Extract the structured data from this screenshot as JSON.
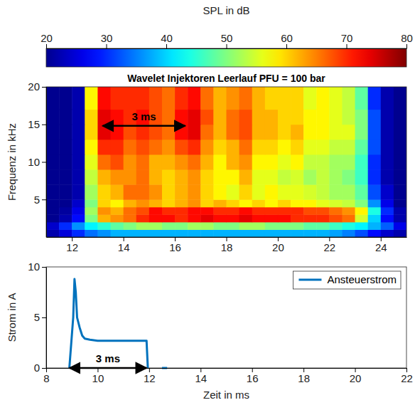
{
  "chart_data": [
    {
      "type": "heatmap",
      "title": "Wavelet Injektoren Leerlauf PFU = 100 bar",
      "y_label": "Frequenz in kHz",
      "x_edges": [
        11,
        11.5,
        12,
        12.5,
        13,
        13.5,
        14,
        14.5,
        15,
        15.5,
        16,
        16.5,
        17,
        17.5,
        18,
        18.5,
        19,
        19.5,
        20,
        20.5,
        21,
        21.5,
        22,
        22.5,
        23,
        23.5,
        24,
        24.5,
        25
      ],
      "y_edges": [
        0,
        1,
        2,
        3,
        4,
        5,
        7,
        9,
        11,
        13,
        15,
        17,
        20
      ],
      "z": [
        [
          22,
          25,
          30,
          34,
          36,
          38,
          38,
          38,
          38,
          38,
          38,
          38,
          38,
          38,
          38,
          38,
          38,
          38,
          38,
          38,
          38,
          38,
          37,
          35,
          32,
          28,
          24,
          22
        ],
        [
          24,
          30,
          36,
          42,
          45,
          48,
          50,
          52,
          52,
          50,
          50,
          52,
          52,
          50,
          50,
          52,
          52,
          50,
          50,
          50,
          48,
          48,
          46,
          44,
          42,
          38,
          33,
          26
        ],
        [
          20,
          22,
          28,
          50,
          62,
          64,
          66,
          70,
          72,
          72,
          70,
          72,
          74,
          72,
          72,
          74,
          72,
          72,
          72,
          70,
          70,
          70,
          68,
          66,
          55,
          40,
          28,
          22
        ],
        [
          20,
          21,
          26,
          52,
          64,
          62,
          66,
          68,
          72,
          70,
          70,
          72,
          72,
          70,
          70,
          72,
          70,
          70,
          70,
          70,
          68,
          68,
          66,
          64,
          58,
          44,
          30,
          22
        ],
        [
          20,
          20,
          24,
          50,
          60,
          58,
          62,
          64,
          62,
          60,
          62,
          64,
          60,
          62,
          60,
          58,
          60,
          58,
          60,
          58,
          58,
          56,
          55,
          54,
          50,
          36,
          26,
          20
        ],
        [
          20,
          20,
          22,
          52,
          60,
          62,
          66,
          66,
          64,
          60,
          62,
          64,
          60,
          58,
          56,
          60,
          56,
          58,
          56,
          56,
          55,
          54,
          52,
          52,
          48,
          32,
          24,
          20
        ],
        [
          20,
          20,
          22,
          54,
          62,
          64,
          64,
          66,
          62,
          60,
          62,
          64,
          60,
          58,
          58,
          62,
          56,
          56,
          54,
          55,
          52,
          54,
          52,
          50,
          46,
          30,
          22,
          20
        ],
        [
          20,
          20,
          22,
          56,
          66,
          68,
          64,
          66,
          62,
          62,
          64,
          66,
          62,
          58,
          62,
          64,
          58,
          58,
          56,
          58,
          54,
          54,
          52,
          52,
          46,
          30,
          22,
          20
        ],
        [
          20,
          20,
          22,
          58,
          70,
          70,
          66,
          68,
          66,
          64,
          68,
          70,
          64,
          60,
          62,
          66,
          60,
          60,
          58,
          60,
          56,
          56,
          54,
          54,
          48,
          32,
          22,
          20
        ],
        [
          20,
          20,
          22,
          60,
          74,
          72,
          68,
          70,
          68,
          66,
          72,
          74,
          66,
          62,
          66,
          68,
          62,
          62,
          60,
          62,
          58,
          58,
          56,
          56,
          50,
          32,
          22,
          20
        ],
        [
          20,
          20,
          22,
          60,
          74,
          72,
          70,
          72,
          68,
          66,
          72,
          74,
          68,
          62,
          66,
          68,
          62,
          62,
          60,
          60,
          58,
          58,
          56,
          54,
          50,
          32,
          22,
          20
        ],
        [
          20,
          20,
          22,
          58,
          72,
          70,
          70,
          70,
          68,
          66,
          70,
          72,
          66,
          62,
          64,
          66,
          62,
          60,
          60,
          60,
          56,
          58,
          56,
          54,
          48,
          30,
          22,
          20
        ]
      ],
      "xlim": [
        11,
        25
      ],
      "xticks": [
        12,
        14,
        16,
        18,
        20,
        22,
        24
      ],
      "ylim": [
        0,
        20
      ],
      "yticks": [
        5,
        10,
        15,
        20
      ],
      "colorbar": {
        "label": "SPL in dB",
        "range": [
          20,
          80
        ],
        "ticks": [
          20,
          30,
          40,
          50,
          60,
          70,
          80
        ]
      },
      "annotations": [
        {
          "text": "3 ms",
          "x_start": 13.2,
          "x_end": 16.4,
          "y": 14.8
        }
      ]
    },
    {
      "type": "line",
      "x_label": "Zeit in ms",
      "y_label": "Strom in A",
      "x": [
        8.9,
        9.05,
        9.1,
        9.15,
        9.2,
        9.3,
        9.4,
        9.5,
        9.7,
        10,
        10.5,
        11,
        11.5,
        11.9,
        11.95,
        12.1,
        12.5,
        12.7
      ],
      "series": [
        {
          "name": "Ansteuerstrom",
          "color": "#0072bd",
          "values": [
            0,
            5,
            8.8,
            7.5,
            5,
            4,
            3.2,
            2.9,
            2.8,
            2.7,
            2.7,
            2.7,
            2.7,
            2.7,
            0,
            null,
            0,
            0
          ]
        }
      ],
      "xlim": [
        8,
        22
      ],
      "xticks": [
        8,
        10,
        12,
        14,
        16,
        18,
        20,
        22
      ],
      "ylim": [
        0,
        10
      ],
      "yticks": [
        0,
        5,
        10
      ],
      "legend": "upper right",
      "annotations": [
        {
          "text": "3 ms",
          "x_start": 8.9,
          "x_end": 11.9,
          "y": 0
        }
      ]
    }
  ]
}
